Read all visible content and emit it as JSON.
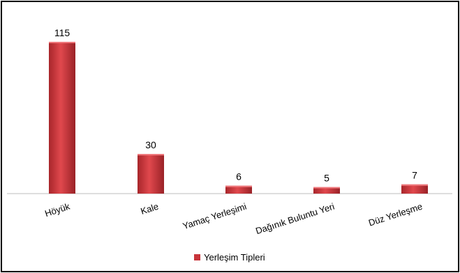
{
  "chart_data": {
    "type": "bar",
    "categories": [
      "Höyük",
      "Kale",
      "Yamaç Yerleşimi",
      "Dağınık Buluntu Yeri",
      "Düz Yerleşme"
    ],
    "values": [
      115,
      30,
      6,
      5,
      7
    ],
    "ylim": [
      0,
      130
    ],
    "grid": false,
    "legend": {
      "position": "bottom",
      "entries": [
        "Yerleşim Tipleri"
      ]
    },
    "series": [
      {
        "name": "Yerleşim Tipleri",
        "values": [
          115,
          30,
          6,
          5,
          7
        ]
      }
    ],
    "colors": {
      "bar": "#c8343a",
      "bar_dark": "#8e1f24",
      "axis": "#bdbdbd"
    }
  }
}
